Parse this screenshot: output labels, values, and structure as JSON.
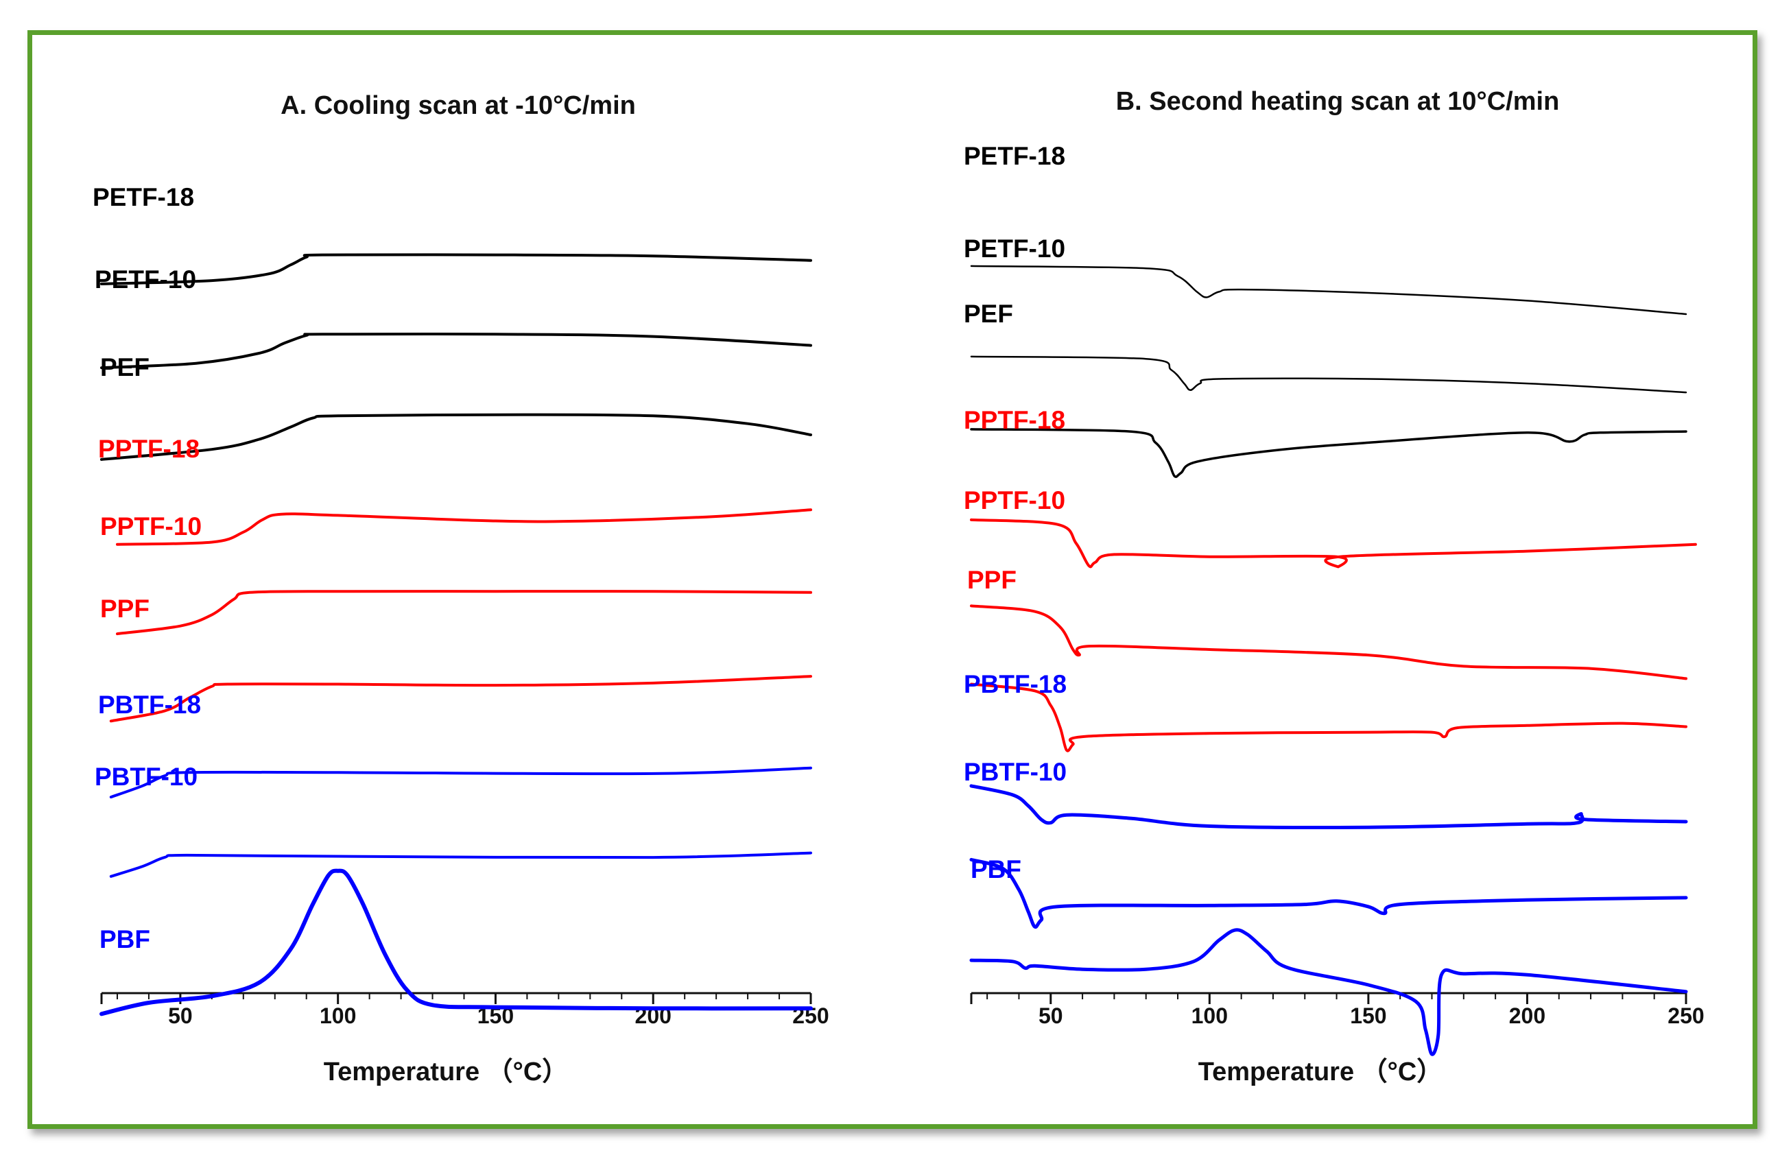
{
  "chart_data": [
    {
      "type": "line",
      "title": "A.  Cooling scan at -10°C/min",
      "xlabel": "Temperature （°C）",
      "ylabel": "",
      "xlim": [
        25,
        250
      ],
      "xticks": [
        50,
        100,
        150,
        200,
        250
      ],
      "series": [
        {
          "name": "PETF-18",
          "color": "#000000",
          "points": [
            [
              25,
              165
            ],
            [
              60,
              162
            ],
            [
              78,
              156
            ],
            [
              85,
              148
            ],
            [
              90,
              141
            ],
            [
              95,
              139
            ],
            [
              150,
              139
            ],
            [
              200,
              140
            ],
            [
              250,
              144
            ]
          ]
        },
        {
          "name": "PETF-10",
          "color": "#000000",
          "points": [
            [
              25,
              240
            ],
            [
              55,
              236
            ],
            [
              75,
              227
            ],
            [
              83,
              218
            ],
            [
              90,
              211
            ],
            [
              95,
              210
            ],
            [
              150,
              210
            ],
            [
              200,
              212
            ],
            [
              250,
              220
            ]
          ]
        },
        {
          "name": "PEF",
          "color": "#000000",
          "points": [
            [
              25,
              322
            ],
            [
              60,
              313
            ],
            [
              75,
              304
            ],
            [
              85,
              293
            ],
            [
              92,
              285
            ],
            [
              100,
              283
            ],
            [
              150,
              282
            ],
            [
              200,
              283
            ],
            [
              230,
              290
            ],
            [
              250,
              300
            ]
          ]
        },
        {
          "name": "PPTF-18",
          "color": "#ff0000",
          "points": [
            [
              30,
              398
            ],
            [
              60,
              396
            ],
            [
              70,
              387
            ],
            [
              76,
              376
            ],
            [
              82,
              371
            ],
            [
              100,
              372
            ],
            [
              150,
              377
            ],
            [
              180,
              377
            ],
            [
              220,
              373
            ],
            [
              250,
              367
            ]
          ]
        },
        {
          "name": "PPTF-10",
          "color": "#ff0000",
          "points": [
            [
              30,
              478
            ],
            [
              50,
              471
            ],
            [
              60,
              461
            ],
            [
              67,
              447
            ],
            [
              72,
              441
            ],
            [
              100,
              440
            ],
            [
              150,
              440
            ],
            [
              200,
              440
            ],
            [
              250,
              441
            ]
          ]
        },
        {
          "name": "PPF",
          "color": "#ff0000",
          "points": [
            [
              28,
              556
            ],
            [
              45,
              547
            ],
            [
              53,
              535
            ],
            [
              60,
              525
            ],
            [
              65,
              523
            ],
            [
              100,
              523
            ],
            [
              150,
              524
            ],
            [
              200,
              522
            ],
            [
              250,
              516
            ]
          ]
        },
        {
          "name": "PBTF-18",
          "color": "#0000ff",
          "points": [
            [
              28,
              624
            ],
            [
              38,
              614
            ],
            [
              45,
              605
            ],
            [
              52,
              602
            ],
            [
              100,
              602
            ],
            [
              200,
              603
            ],
            [
              250,
              598
            ]
          ]
        },
        {
          "name": "PBTF-10",
          "color": "#0000ff",
          "points": [
            [
              28,
              695
            ],
            [
              38,
              686
            ],
            [
              45,
              678
            ],
            [
              52,
              676
            ],
            [
              100,
              677
            ],
            [
              200,
              678
            ],
            [
              250,
              674
            ]
          ]
        },
        {
          "name": "PBF",
          "color": "#0000ff",
          "points": [
            [
              25,
              818
            ],
            [
              40,
              808
            ],
            [
              60,
              802
            ],
            [
              75,
              790
            ],
            [
              85,
              760
            ],
            [
              92,
              720
            ],
            [
              97,
              694
            ],
            [
              100,
              690
            ],
            [
              103,
              694
            ],
            [
              108,
              720
            ],
            [
              115,
              765
            ],
            [
              122,
              797
            ],
            [
              130,
              810
            ],
            [
              150,
              812
            ],
            [
              200,
              813
            ],
            [
              250,
              813
            ]
          ]
        }
      ]
    },
    {
      "type": "line",
      "title": "B.  Second heating scan at 10°C/min",
      "xlabel": "Temperature （°C）",
      "ylabel": "",
      "xlim": [
        25,
        250
      ],
      "xticks": [
        50,
        100,
        150,
        200,
        250
      ],
      "series": [
        {
          "name": "PETF-18",
          "color": "#000000",
          "points": [
            [
              25,
              157
            ],
            [
              80,
              159
            ],
            [
              90,
              166
            ],
            [
              96,
              180
            ],
            [
              99,
              185
            ],
            [
              103,
              180
            ],
            [
              110,
              178
            ],
            [
              150,
              181
            ],
            [
              200,
              188
            ],
            [
              250,
              200
            ]
          ]
        },
        {
          "name": "PETF-10",
          "color": "#000000",
          "points": [
            [
              25,
              238
            ],
            [
              80,
              240
            ],
            [
              88,
              250
            ],
            [
              92,
              262
            ],
            [
              94,
              268
            ],
            [
              97,
              262
            ],
            [
              103,
              258
            ],
            [
              150,
              258
            ],
            [
              200,
              262
            ],
            [
              250,
              270
            ]
          ]
        },
        {
          "name": "PEF",
          "color": "#000000",
          "points": [
            [
              25,
              303
            ],
            [
              75,
              305
            ],
            [
              83,
              315
            ],
            [
              87,
              332
            ],
            [
              89,
              345
            ],
            [
              91,
              342
            ],
            [
              96,
              332
            ],
            [
              120,
              322
            ],
            [
              150,
              315
            ],
            [
              200,
              306
            ],
            [
              213,
              314
            ],
            [
              218,
              308
            ],
            [
              223,
              306
            ],
            [
              250,
              305
            ]
          ]
        },
        {
          "name": "PPTF-18",
          "color": "#ff0000",
          "points": [
            [
              25,
              384
            ],
            [
              52,
              388
            ],
            [
              58,
              405
            ],
            [
              62,
              425
            ],
            [
              64,
              422
            ],
            [
              70,
              415
            ],
            [
              100,
              417
            ],
            [
              140,
              417
            ],
            [
              140.5,
              426
            ],
            [
              141,
              417
            ],
            [
              200,
              412
            ],
            [
              253,
              406
            ]
          ]
        },
        {
          "name": "PPTF-10",
          "color": "#ff0000",
          "points": [
            [
              25,
              461
            ],
            [
              45,
              466
            ],
            [
              53,
              480
            ],
            [
              57,
              500
            ],
            [
              59,
              505
            ],
            [
              62,
              497
            ],
            [
              100,
              500
            ],
            [
              150,
              505
            ],
            [
              180,
              515
            ],
            [
              220,
              517
            ],
            [
              250,
              526
            ]
          ]
        },
        {
          "name": "PPF",
          "color": "#ff0000",
          "points": [
            [
              25,
              531
            ],
            [
              45,
              537
            ],
            [
              50,
              550
            ],
            [
              53,
              570
            ],
            [
              55,
              590
            ],
            [
              57,
              585
            ],
            [
              60,
              578
            ],
            [
              100,
              575
            ],
            [
              150,
              574
            ],
            [
              170,
              574
            ],
            [
              174,
              578
            ],
            [
              178,
              570
            ],
            [
              200,
              568
            ],
            [
              230,
              566
            ],
            [
              250,
              569
            ]
          ]
        },
        {
          "name": "PBTF-18",
          "color": "#0000ff",
          "points": [
            [
              25,
              622
            ],
            [
              38,
              630
            ],
            [
              43,
              640
            ],
            [
              47,
              652
            ],
            [
              50,
              655
            ],
            [
              55,
              648
            ],
            [
              75,
              651
            ],
            [
              100,
              658
            ],
            [
              150,
              659
            ],
            [
              200,
              656
            ],
            [
              216,
              655
            ],
            [
              217,
              647
            ],
            [
              218,
              652
            ],
            [
              250,
              654
            ]
          ]
        },
        {
          "name": "PBTF-10",
          "color": "#0000ff",
          "points": [
            [
              25,
              688
            ],
            [
              35,
              696
            ],
            [
              40,
              715
            ],
            [
              43,
              735
            ],
            [
              45,
              748
            ],
            [
              47,
              742
            ],
            [
              52,
              730
            ],
            [
              100,
              729
            ],
            [
              130,
              728
            ],
            [
              140,
              725
            ],
            [
              150,
              730
            ],
            [
              155,
              736
            ],
            [
              160,
              728
            ],
            [
              200,
              724
            ],
            [
              250,
              722
            ]
          ]
        },
        {
          "name": "PBF",
          "color": "#0000ff",
          "points": [
            [
              25,
              778
            ],
            [
              38,
              779
            ],
            [
              42,
              785
            ],
            [
              45,
              783
            ],
            [
              60,
              786
            ],
            [
              80,
              786
            ],
            [
              95,
              779
            ],
            [
              103,
              760
            ],
            [
              108,
              751
            ],
            [
              112,
              755
            ],
            [
              118,
              770
            ],
            [
              125,
              785
            ],
            [
              150,
              800
            ],
            [
              165,
              815
            ],
            [
              168,
              840
            ],
            [
              170,
              862
            ],
            [
              172,
              845
            ],
            [
              173,
              791
            ],
            [
              180,
              790
            ],
            [
              200,
              791
            ],
            [
              250,
              806
            ]
          ]
        }
      ]
    }
  ]
}
